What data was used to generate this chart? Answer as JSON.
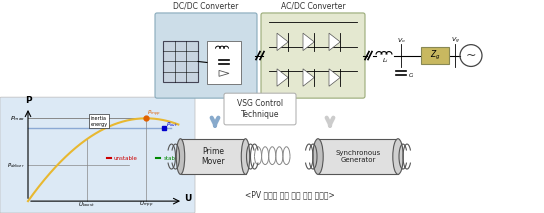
{
  "dc_dc_label": "DC/DC Converter",
  "ac_dc_label": "AC/DC Converter",
  "vsg_label": "VSG Control\nTechnique",
  "prime_mover_label": "Prime\nMover",
  "sync_gen_label": "Synchronous\nGenerator",
  "subtitle": "<PV 시스템 가상 관성 적용 구성도>",
  "mppt_bg": "#dce9f5",
  "dc_box_color": "#cce0f0",
  "ac_box_color": "#e8ecd8",
  "curve_color": "#e8b830",
  "pref_color": "#7799cc",
  "point_mpp_color": "#e06000",
  "point_out_color": "#0000cc",
  "unstable_color": "#cc0000",
  "stable_color": "#008800",
  "arrow_blue": "#88aacc",
  "arrow_gray": "#cccccc",
  "zg_color": "#c8b860",
  "cyl_face": "#e0e0e0",
  "cyl_edge": "#555555",
  "cyl_end": "#c0c0c0"
}
